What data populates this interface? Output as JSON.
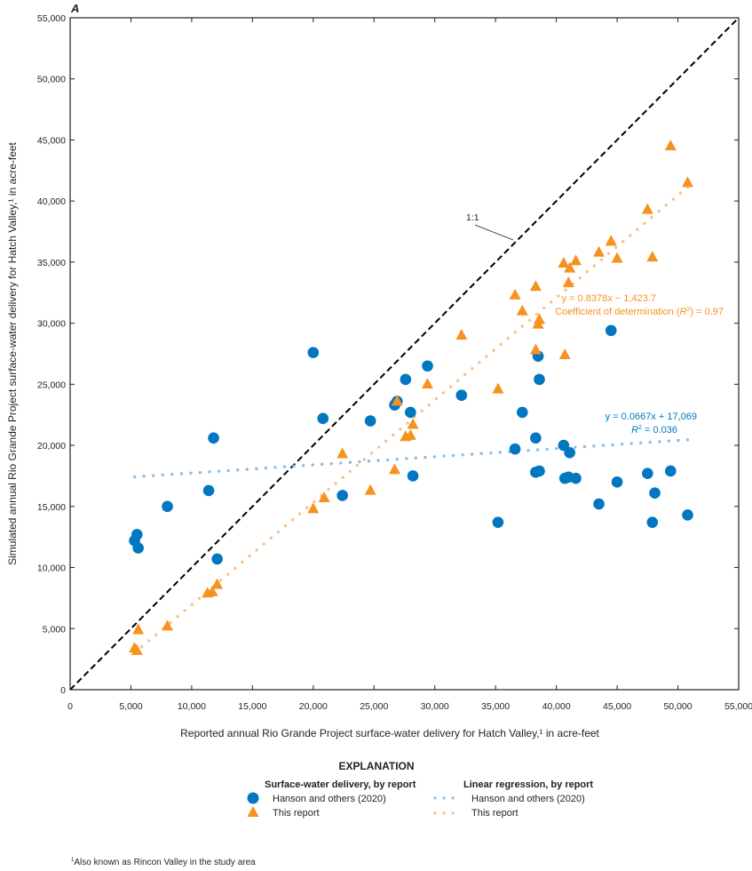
{
  "panel_label": "A",
  "footnote": "Also known as Rincon Valley in the study area",
  "footnote_marker": "1",
  "one_to_one_label": "1:1",
  "colors": {
    "hanson": "#0077c0",
    "hanson_line": "#8cbde3",
    "this_report": "#f6921e",
    "this_report_line": "#fbc08a",
    "identity_line": "#000000",
    "axis": "#231f20"
  },
  "annotations": {
    "this_report_eq": "y = 0.8378x − 1,423.7",
    "this_report_r2": "Coefficient of determination (R²) = 0.97",
    "hanson_eq": "y = 0.0667x + 17,069",
    "hanson_r2": "R² = 0.036"
  },
  "legend": {
    "title": "EXPLANATION",
    "points_heading": "Surface-water delivery, by report",
    "lines_heading": "Linear regression, by report",
    "items": [
      {
        "label": "Hanson and others (2020)",
        "marker": "circle"
      },
      {
        "label": "This report",
        "marker": "triangle"
      }
    ],
    "line_items": [
      {
        "label": "Hanson and others (2020)",
        "style": "dotted"
      },
      {
        "label": "This report",
        "style": "dotted"
      }
    ]
  },
  "chart_data": {
    "type": "scatter",
    "title": "",
    "xlabel": "Reported annual Rio Grande Project surface-water delivery for Hatch Valley,¹ in acre-feet",
    "ylabel": "Simulated annual Rio Grande Project surface-water delivery for Hatch Valley,¹ in acre-feet",
    "xlim": [
      0,
      55000
    ],
    "ylim": [
      0,
      55000
    ],
    "x_ticks": [
      0,
      5000,
      10000,
      15000,
      20000,
      25000,
      30000,
      35000,
      40000,
      45000,
      50000,
      55000
    ],
    "y_ticks": [
      0,
      5000,
      10000,
      15000,
      20000,
      25000,
      30000,
      35000,
      40000,
      45000,
      50000,
      55000
    ],
    "x_tick_labels": [
      "0",
      "5,000",
      "10,000",
      "15,000",
      "20,000",
      "25,000",
      "30,000",
      "35,000",
      "40,000",
      "45,000",
      "50,000",
      "55,000"
    ],
    "y_tick_labels": [
      "0",
      "5,000",
      "10,000",
      "15,000",
      "20,000",
      "25,000",
      "30,000",
      "35,000",
      "40,000",
      "45,000",
      "50,000",
      "55,000"
    ],
    "grid": false,
    "legend_position": "bottom-center",
    "series": [
      {
        "name": "Hanson and others (2020)",
        "marker": "circle",
        "points": [
          [
            5500,
            12700
          ],
          [
            5300,
            12200
          ],
          [
            5600,
            11600
          ],
          [
            8000,
            15000
          ],
          [
            11400,
            16300
          ],
          [
            11800,
            20600
          ],
          [
            12100,
            10700
          ],
          [
            20000,
            27600
          ],
          [
            20800,
            22200
          ],
          [
            22400,
            15900
          ],
          [
            24700,
            22000
          ],
          [
            26700,
            23300
          ],
          [
            26900,
            23600
          ],
          [
            27600,
            25400
          ],
          [
            28000,
            22700
          ],
          [
            28200,
            17500
          ],
          [
            29400,
            26500
          ],
          [
            32200,
            24100
          ],
          [
            35200,
            13700
          ],
          [
            36600,
            19700
          ],
          [
            37200,
            22700
          ],
          [
            38300,
            20600
          ],
          [
            38300,
            17800
          ],
          [
            38600,
            17900
          ],
          [
            38500,
            27300
          ],
          [
            38600,
            25400
          ],
          [
            40600,
            20000
          ],
          [
            40700,
            17300
          ],
          [
            41000,
            17400
          ],
          [
            41100,
            19400
          ],
          [
            41600,
            17300
          ],
          [
            43500,
            15200
          ],
          [
            44500,
            29400
          ],
          [
            45000,
            17000
          ],
          [
            47500,
            17700
          ],
          [
            47900,
            13700
          ],
          [
            48100,
            16100
          ],
          [
            49400,
            17900
          ],
          [
            50800,
            14300
          ]
        ]
      },
      {
        "name": "This report",
        "marker": "triangle",
        "points": [
          [
            5300,
            3400
          ],
          [
            5500,
            3200
          ],
          [
            5600,
            4900
          ],
          [
            8000,
            5200
          ],
          [
            11300,
            7900
          ],
          [
            11700,
            8000
          ],
          [
            12100,
            8600
          ],
          [
            20000,
            14800
          ],
          [
            20900,
            15700
          ],
          [
            22400,
            19300
          ],
          [
            24700,
            16300
          ],
          [
            26700,
            18000
          ],
          [
            26900,
            23600
          ],
          [
            27600,
            20700
          ],
          [
            28000,
            20800
          ],
          [
            28200,
            21700
          ],
          [
            29400,
            25000
          ],
          [
            32200,
            29000
          ],
          [
            35200,
            24600
          ],
          [
            36600,
            32300
          ],
          [
            37200,
            31000
          ],
          [
            38300,
            33000
          ],
          [
            38300,
            27800
          ],
          [
            38500,
            29900
          ],
          [
            38600,
            30300
          ],
          [
            40600,
            34900
          ],
          [
            40700,
            27400
          ],
          [
            41000,
            33300
          ],
          [
            41100,
            34500
          ],
          [
            41600,
            35100
          ],
          [
            43500,
            35800
          ],
          [
            44500,
            36700
          ],
          [
            45000,
            35300
          ],
          [
            47500,
            39300
          ],
          [
            47900,
            35400
          ],
          [
            49400,
            44500
          ],
          [
            50800,
            41500
          ]
        ]
      }
    ],
    "regressions": [
      {
        "name": "Hanson and others (2020)",
        "slope": 0.0667,
        "intercept": 17069,
        "r2": 0.036,
        "x_range": [
          5300,
          50800
        ]
      },
      {
        "name": "This report",
        "slope": 0.8378,
        "intercept": -1423.7,
        "r2": 0.97,
        "x_range": [
          5300,
          50800
        ]
      }
    ],
    "reference_line": {
      "name": "1:1",
      "slope": 1,
      "intercept": 0
    }
  }
}
